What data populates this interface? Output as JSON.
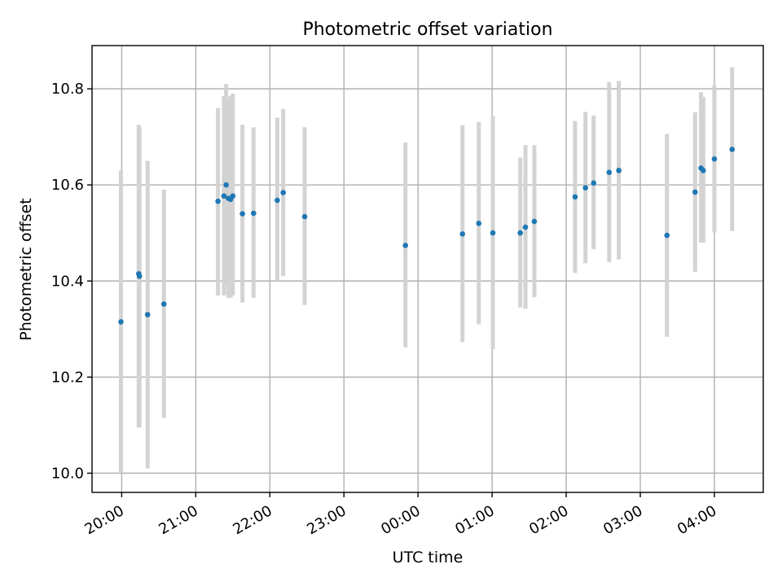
{
  "chart_data": {
    "type": "scatter",
    "title": "Photometric offset variation",
    "xlabel": "UTC time",
    "ylabel": "Photometric offset",
    "x_unit": "hours since 20:00 UTC",
    "xlim": [
      -0.4,
      8.66
    ],
    "ylim": [
      9.96,
      10.89
    ],
    "xticks": [
      {
        "x": 0,
        "label": "20:00"
      },
      {
        "x": 1,
        "label": "21:00"
      },
      {
        "x": 2,
        "label": "22:00"
      },
      {
        "x": 3,
        "label": "23:00"
      },
      {
        "x": 4,
        "label": "00:00"
      },
      {
        "x": 5,
        "label": "01:00"
      },
      {
        "x": 6,
        "label": "02:00"
      },
      {
        "x": 7,
        "label": "03:00"
      },
      {
        "x": 8,
        "label": "04:00"
      }
    ],
    "yticks": [
      {
        "y": 10.0,
        "label": "10.0"
      },
      {
        "y": 10.2,
        "label": "10.2"
      },
      {
        "y": 10.4,
        "label": "10.4"
      },
      {
        "y": 10.6,
        "label": "10.6"
      },
      {
        "y": 10.8,
        "label": "10.8"
      }
    ],
    "grid": true,
    "legend": "none",
    "colors": {
      "point": "#1f77b4",
      "errorbar": "#d3d3d3"
    },
    "points": [
      {
        "x": -0.01,
        "y": 10.315,
        "ylow": 10.0,
        "yhigh": 10.63
      },
      {
        "x": 0.23,
        "y": 10.415,
        "ylow": 10.095,
        "yhigh": 10.725
      },
      {
        "x": 0.24,
        "y": 10.41,
        "ylow": 10.095,
        "yhigh": 10.72
      },
      {
        "x": 0.35,
        "y": 10.33,
        "ylow": 10.01,
        "yhigh": 10.65
      },
      {
        "x": 0.57,
        "y": 10.352,
        "ylow": 10.115,
        "yhigh": 10.59
      },
      {
        "x": 1.3,
        "y": 10.566,
        "ylow": 10.37,
        "yhigh": 10.76
      },
      {
        "x": 1.38,
        "y": 10.577,
        "ylow": 10.37,
        "yhigh": 10.785
      },
      {
        "x": 1.41,
        "y": 10.6,
        "ylow": 10.39,
        "yhigh": 10.81
      },
      {
        "x": 1.44,
        "y": 10.572,
        "ylow": 10.365,
        "yhigh": 10.78
      },
      {
        "x": 1.47,
        "y": 10.57,
        "ylow": 10.365,
        "yhigh": 10.785
      },
      {
        "x": 1.5,
        "y": 10.577,
        "ylow": 10.37,
        "yhigh": 10.79
      },
      {
        "x": 1.63,
        "y": 10.54,
        "ylow": 10.355,
        "yhigh": 10.725
      },
      {
        "x": 1.78,
        "y": 10.541,
        "ylow": 10.365,
        "yhigh": 10.72
      },
      {
        "x": 2.1,
        "y": 10.568,
        "ylow": 10.4,
        "yhigh": 10.74
      },
      {
        "x": 2.18,
        "y": 10.584,
        "ylow": 10.41,
        "yhigh": 10.758
      },
      {
        "x": 2.47,
        "y": 10.534,
        "ylow": 10.35,
        "yhigh": 10.72
      },
      {
        "x": 3.83,
        "y": 10.474,
        "ylow": 10.262,
        "yhigh": 10.688
      },
      {
        "x": 4.6,
        "y": 10.498,
        "ylow": 10.273,
        "yhigh": 10.724
      },
      {
        "x": 4.82,
        "y": 10.52,
        "ylow": 10.31,
        "yhigh": 10.731
      },
      {
        "x": 5.01,
        "y": 10.5,
        "ylow": 10.258,
        "yhigh": 10.744
      },
      {
        "x": 5.38,
        "y": 10.5,
        "ylow": 10.345,
        "yhigh": 10.657
      },
      {
        "x": 5.45,
        "y": 10.512,
        "ylow": 10.342,
        "yhigh": 10.683
      },
      {
        "x": 5.57,
        "y": 10.524,
        "ylow": 10.366,
        "yhigh": 10.683
      },
      {
        "x": 6.12,
        "y": 10.575,
        "ylow": 10.417,
        "yhigh": 10.733
      },
      {
        "x": 6.26,
        "y": 10.594,
        "ylow": 10.437,
        "yhigh": 10.752
      },
      {
        "x": 6.37,
        "y": 10.604,
        "ylow": 10.466,
        "yhigh": 10.744
      },
      {
        "x": 6.58,
        "y": 10.626,
        "ylow": 10.439,
        "yhigh": 10.814
      },
      {
        "x": 6.71,
        "y": 10.63,
        "ylow": 10.445,
        "yhigh": 10.816
      },
      {
        "x": 7.36,
        "y": 10.495,
        "ylow": 10.284,
        "yhigh": 10.706
      },
      {
        "x": 7.74,
        "y": 10.585,
        "ylow": 10.419,
        "yhigh": 10.751
      },
      {
        "x": 7.82,
        "y": 10.635,
        "ylow": 10.48,
        "yhigh": 10.793
      },
      {
        "x": 7.85,
        "y": 10.63,
        "ylow": 10.48,
        "yhigh": 10.783
      },
      {
        "x": 8.0,
        "y": 10.654,
        "ylow": 10.501,
        "yhigh": 10.808
      },
      {
        "x": 8.24,
        "y": 10.674,
        "ylow": 10.504,
        "yhigh": 10.845
      }
    ]
  }
}
